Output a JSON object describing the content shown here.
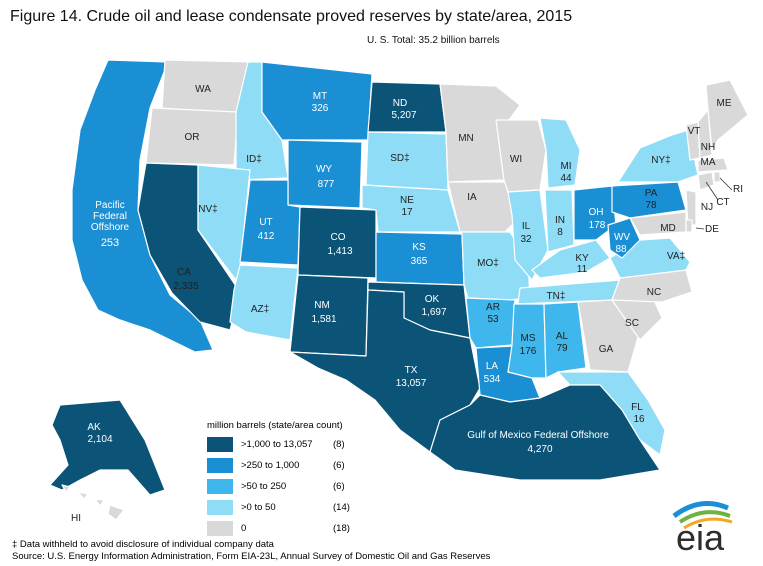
{
  "title": "Figure 14. Crude oil and lease condensate proved reserves by state/area, 2015",
  "subtitle": "U. S. Total: 35.2 billion barrels",
  "colors": {
    "tier1": "#0b5477",
    "tier2": "#1b8fd4",
    "tier3": "#3fb6ec",
    "tier4": "#8fdcf7",
    "zero": "#d9d9d9"
  },
  "legend": {
    "title": "million barrels (state/area count)",
    "items": [
      {
        "range": ">1,000 to 13,057",
        "count": "(8)",
        "color": "#0b5477"
      },
      {
        "range": ">250 to 1,000",
        "count": "(6)",
        "color": "#1b8fd4"
      },
      {
        "range": ">50 to 250",
        "count": "(6)",
        "color": "#3fb6ec"
      },
      {
        "range": ">0 to 50",
        "count": "(14)",
        "color": "#8fdcf7"
      },
      {
        "range": "0",
        "count": "(18)",
        "color": "#d9d9d9"
      }
    ]
  },
  "states": {
    "WA": {
      "abbr": "WA",
      "value": ""
    },
    "OR": {
      "abbr": "OR",
      "value": ""
    },
    "CA": {
      "abbr": "CA",
      "value": "2,335"
    },
    "PAC": {
      "abbr": "Pacific Federal Offshore",
      "value": "253"
    },
    "ID": {
      "abbr": "ID‡",
      "value": ""
    },
    "NV": {
      "abbr": "NV‡",
      "value": ""
    },
    "MT": {
      "abbr": "MT",
      "value": "326"
    },
    "WY": {
      "abbr": "WY",
      "value": "877"
    },
    "UT": {
      "abbr": "UT",
      "value": "412"
    },
    "AZ": {
      "abbr": "AZ‡",
      "value": ""
    },
    "CO": {
      "abbr": "CO",
      "value": "1,413"
    },
    "NM": {
      "abbr": "NM",
      "value": "1,581"
    },
    "ND": {
      "abbr": "ND",
      "value": "5,207"
    },
    "SD": {
      "abbr": "SD‡",
      "value": ""
    },
    "NE": {
      "abbr": "NE",
      "value": "17"
    },
    "KS": {
      "abbr": "KS",
      "value": "365"
    },
    "OK": {
      "abbr": "OK",
      "value": "1,697"
    },
    "TX": {
      "abbr": "TX",
      "value": "13,057"
    },
    "MN": {
      "abbr": "MN",
      "value": ""
    },
    "IA": {
      "abbr": "IA",
      "value": ""
    },
    "MO": {
      "abbr": "MO‡",
      "value": ""
    },
    "AR": {
      "abbr": "AR",
      "value": "53"
    },
    "LA": {
      "abbr": "LA",
      "value": "534"
    },
    "WI": {
      "abbr": "WI",
      "value": ""
    },
    "IL": {
      "abbr": "IL",
      "value": "32"
    },
    "MI": {
      "abbr": "MI",
      "value": "44"
    },
    "IN": {
      "abbr": "IN",
      "value": "8"
    },
    "OH": {
      "abbr": "OH",
      "value": "178"
    },
    "KY": {
      "abbr": "KY",
      "value": "11"
    },
    "TN": {
      "abbr": "TN‡",
      "value": ""
    },
    "MS": {
      "abbr": "MS",
      "value": "176"
    },
    "AL": {
      "abbr": "AL",
      "value": "79"
    },
    "GA": {
      "abbr": "GA",
      "value": ""
    },
    "FL": {
      "abbr": "FL",
      "value": "16"
    },
    "SC": {
      "abbr": "SC",
      "value": ""
    },
    "NC": {
      "abbr": "NC",
      "value": ""
    },
    "VA": {
      "abbr": "VA‡",
      "value": ""
    },
    "WV": {
      "abbr": "WV",
      "value": "88"
    },
    "PA": {
      "abbr": "PA",
      "value": "78"
    },
    "NY": {
      "abbr": "NY‡",
      "value": ""
    },
    "MD": {
      "abbr": "MD",
      "value": ""
    },
    "DE": {
      "abbr": "DE",
      "value": ""
    },
    "NJ": {
      "abbr": "NJ",
      "value": ""
    },
    "CT": {
      "abbr": "CT",
      "value": ""
    },
    "RI": {
      "abbr": "RI",
      "value": ""
    },
    "MA": {
      "abbr": "MA",
      "value": ""
    },
    "VT": {
      "abbr": "VT",
      "value": ""
    },
    "NH": {
      "abbr": "NH",
      "value": ""
    },
    "ME": {
      "abbr": "ME",
      "value": ""
    },
    "AK": {
      "abbr": "AK",
      "value": "2,104"
    },
    "HI": {
      "abbr": "HI",
      "value": ""
    },
    "GOM": {
      "abbr": "Gulf of Mexico Federal Offshore",
      "value": "4,270"
    }
  },
  "footnotes": {
    "withheld": "‡ Data withheld to avoid disclosure of individual company data",
    "source": "Source:  U.S. Energy Information Administration, Form EIA-23L, Annual Survey of Domestic Oil and Gas Reserves"
  },
  "logo": {
    "text": "eia"
  }
}
